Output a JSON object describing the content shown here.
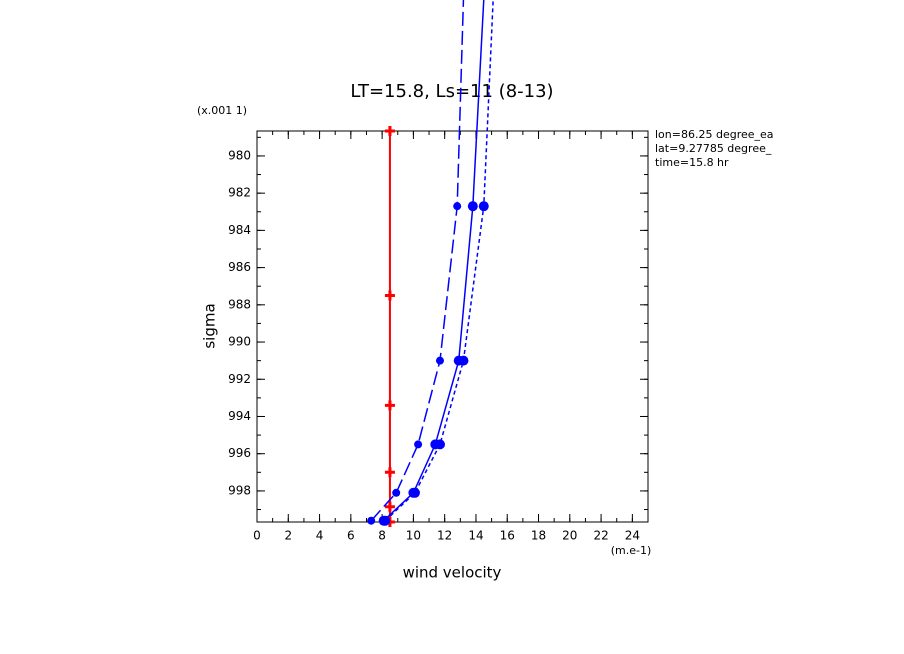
{
  "chart_data": {
    "type": "profile",
    "title": "LT=15.8, Ls=11 (8-13)",
    "x_label": "wind velocity",
    "x_units": "(m.e-1)",
    "y_label": "sigma",
    "y_units": "(x.001 1)",
    "annotations": [
      "lon=86.25 degree_ea",
      "lat=9.27785 degree_",
      "time=15.8 hr"
    ],
    "xlim": [
      0,
      25
    ],
    "xticks": [
      0,
      2,
      4,
      6,
      8,
      10,
      12,
      14,
      16,
      18,
      20,
      22,
      24
    ],
    "x_minor_step": 1,
    "ylim": [
      978.66,
      999.67
    ],
    "yticks": [
      980,
      982,
      984,
      986,
      988,
      990,
      992,
      994,
      996,
      998
    ],
    "y_minor_step": 1,
    "y_inverted": true,
    "series": [
      {
        "color": "#ff0000",
        "dash": "solid",
        "marker": "plus",
        "values": [
          8.5,
          8.5,
          8.5,
          8.5,
          8.5,
          8.5
        ],
        "sigma": [
          978.66,
          987.5,
          993.4,
          997.0,
          998.85,
          999.67
        ]
      },
      {
        "color": "#0000ff",
        "dash": "long",
        "marker": "dot",
        "values": [
          7.3,
          8.9,
          10.3,
          11.7,
          12.8,
          13.2
        ],
        "sigma": [
          999.6,
          998.1,
          995.5,
          991.0,
          982.7,
          971.6
        ]
      },
      {
        "color": "#0000ff",
        "dash": "solid",
        "marker": "dot",
        "values": [
          8.1,
          10.0,
          11.4,
          12.9,
          13.8,
          14.5
        ],
        "sigma": [
          999.6,
          998.1,
          995.5,
          991.0,
          982.7,
          971.6
        ]
      },
      {
        "color": "#0000ff",
        "dash": "short",
        "marker": "dot",
        "values": [
          8.2,
          10.1,
          11.7,
          13.2,
          14.5,
          15.1
        ],
        "sigma": [
          999.6,
          998.1,
          995.5,
          991.0,
          982.7,
          971.6
        ]
      }
    ]
  }
}
